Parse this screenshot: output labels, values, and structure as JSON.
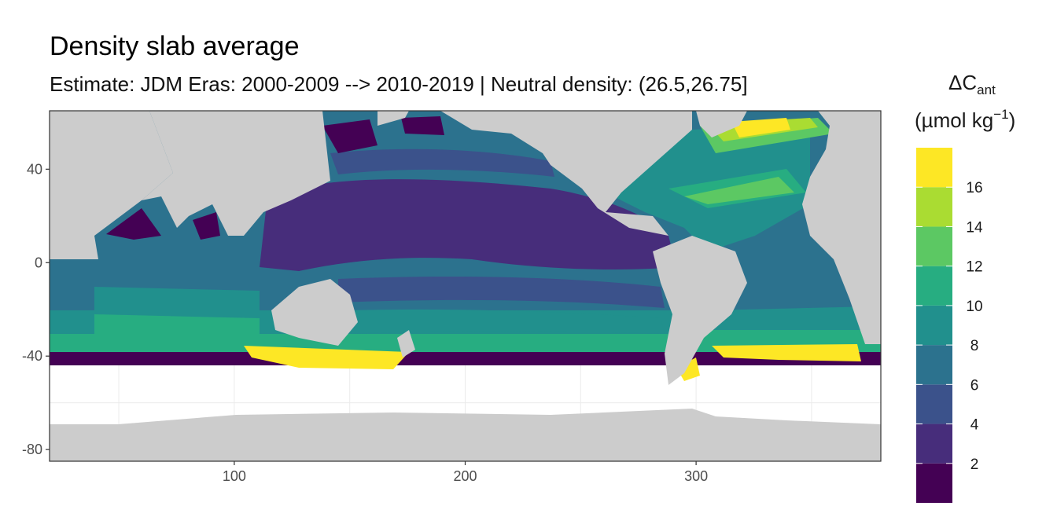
{
  "chart_data": {
    "type": "heatmap",
    "title": "Density slab average",
    "subtitle": "Estimate: JDM Eras: 2000-2009 --> 2010-2019 | Neutral density: (26.5,26.75]",
    "xlabel": "",
    "ylabel": "",
    "xlim": [
      20,
      380
    ],
    "ylim": [
      -85,
      65
    ],
    "x_ticks": [
      100,
      200,
      300
    ],
    "y_ticks": [
      40,
      0,
      -40,
      -80
    ],
    "grid": true,
    "legend": {
      "position": "right",
      "title": "ΔC",
      "title_subscript": "ant",
      "unit_prefix": "(µmol kg",
      "unit_exponent": "−1",
      "unit_suffix": ")",
      "breaks": [
        0,
        2,
        4,
        6,
        8,
        10,
        12,
        14,
        16,
        18
      ],
      "tick_labels": [
        2,
        4,
        6,
        8,
        10,
        12,
        14,
        16
      ],
      "colors": [
        "#440154",
        "#472d7b",
        "#3b528b",
        "#2c728e",
        "#21908d",
        "#27ad81",
        "#5cc863",
        "#aadc32",
        "#fde725"
      ]
    },
    "colors": {
      "land": "#cccccc",
      "no_data": "#ffffff",
      "panel_border": "#333333",
      "grid": "#ebebeb"
    }
  }
}
